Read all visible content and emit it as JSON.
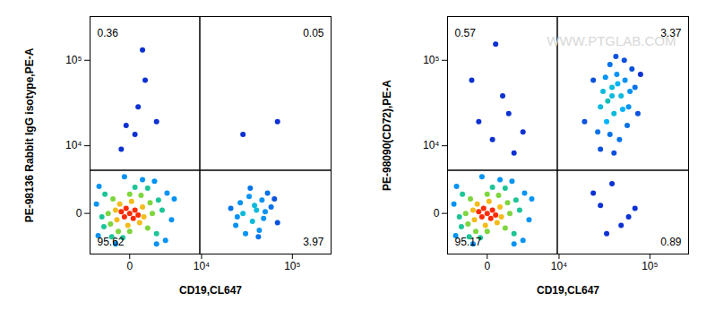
{
  "chart_data": [
    {
      "type": "scatter",
      "x_label": "CD19,CL647",
      "y_label": "PE-98136 Rabbit IgG isotype,PE-A",
      "log": true,
      "xlim": [
        -3500,
        250000
      ],
      "ylim": [
        -4000,
        300000
      ],
      "xticks": [
        0,
        {
          "value": 10000,
          "label": "10⁴"
        },
        {
          "value": 100000,
          "label": "10⁵"
        }
      ],
      "yticks": [
        0,
        {
          "value": 10000,
          "label": "10⁴"
        },
        {
          "value": 100000,
          "label": "10⁵"
        }
      ],
      "gates": {
        "x": 9500,
        "y": 4400
      },
      "quadrant_percents": {
        "upper_left": 0.36,
        "upper_right": 0.05,
        "lower_left": 95.62,
        "lower_right": 3.97
      },
      "x": [
        0,
        300,
        -300,
        200,
        -200,
        500,
        -500,
        800,
        -800,
        600,
        -600,
        900,
        -900,
        100,
        -100,
        1400,
        -1300,
        1200,
        -1100,
        1600,
        -1500,
        0,
        0,
        700,
        -700,
        2200,
        -1900,
        2000,
        -1800,
        2600,
        -2100,
        300,
        -400,
        1200,
        -1200,
        3200,
        -2500,
        3000,
        -2400,
        3800,
        -2700,
        800,
        -900,
        1800,
        2000,
        4200,
        -300,
        30000,
        40000,
        25000,
        50000,
        35000,
        45000,
        28000,
        60000,
        38000,
        32000,
        55000,
        42000,
        22000,
        70000,
        48000,
        36000,
        26000,
        65000,
        44000,
        52000,
        500,
        -200,
        1000,
        300,
        -500,
        2000,
        800,
        30000,
        70000
      ],
      "values": [
        0,
        200,
        -200,
        -300,
        300,
        -100,
        100,
        400,
        -400,
        -600,
        600,
        -200,
        200,
        800,
        -800,
        700,
        -700,
        -1000,
        1000,
        0,
        0,
        1400,
        -1300,
        1300,
        -1300,
        900,
        -900,
        -1500,
        1400,
        200,
        -200,
        2100,
        -1900,
        2000,
        -1800,
        1500,
        -1700,
        -2200,
        2200,
        -400,
        600,
        3000,
        -2600,
        2800,
        -2600,
        1000,
        3400,
        0,
        500,
        -800,
        -300,
        1200,
        -1200,
        700,
        400,
        -500,
        -1500,
        1500,
        200,
        300,
        -600,
        900,
        2000,
        -200,
        1000,
        -1800,
        100,
        30000,
        18000,
        60000,
        14000,
        9000,
        20000,
        130000,
        14000,
        20000
      ],
      "density": [
        1,
        1,
        1,
        1,
        1,
        1,
        1,
        0.8,
        0.8,
        0.8,
        0.8,
        0.8,
        0.8,
        0.8,
        0.8,
        0.6,
        0.6,
        0.6,
        0.6,
        0.6,
        0.6,
        0.6,
        0.6,
        0.6,
        0.6,
        0.4,
        0.4,
        0.4,
        0.4,
        0.4,
        0.4,
        0.4,
        0.4,
        0.4,
        0.4,
        0.2,
        0.2,
        0.2,
        0.2,
        0.2,
        0.2,
        0.2,
        0.2,
        0.2,
        0.2,
        0.2,
        0.2,
        0.3,
        0.3,
        0.2,
        0.2,
        0.2,
        0.2,
        0.2,
        0.15,
        0.3,
        0.2,
        0.15,
        0.3,
        0.15,
        0.1,
        0.2,
        0.15,
        0.2,
        0.1,
        0.15,
        0.2,
        0.05,
        0.05,
        0.05,
        0.05,
        0.05,
        0.05,
        0.05,
        0.05,
        0.05
      ]
    },
    {
      "type": "scatter",
      "x_label": "CD19,CL647",
      "y_label": "PE-98090(CD72),PE-A",
      "annotations": [
        "WWW.PTGLAB.COM"
      ],
      "log": true,
      "xlim": [
        -3500,
        250000
      ],
      "ylim": [
        -4000,
        300000
      ],
      "xticks": [
        0,
        {
          "value": 10000,
          "label": "10⁴"
        },
        {
          "value": 100000,
          "label": "10⁵"
        }
      ],
      "yticks": [
        0,
        {
          "value": 10000,
          "label": "10⁴"
        },
        {
          "value": 100000,
          "label": "10⁵"
        }
      ],
      "gates": {
        "x": 9500,
        "y": 4400
      },
      "quadrant_percents": {
        "upper_left": 0.57,
        "upper_right": 3.37,
        "lower_left": 95.17,
        "lower_right": 0.89
      },
      "x": [
        0,
        300,
        -300,
        200,
        -200,
        500,
        -500,
        800,
        -800,
        600,
        -600,
        900,
        -900,
        100,
        -100,
        1400,
        -1300,
        1200,
        -1100,
        1600,
        -1500,
        0,
        0,
        700,
        -700,
        2200,
        -1900,
        2000,
        -1800,
        2600,
        -2100,
        300,
        -400,
        1200,
        -1200,
        3200,
        -2500,
        3000,
        -2400,
        3800,
        -2700,
        800,
        -900,
        1800,
        2000,
        4200,
        -300,
        30000,
        50000,
        25000,
        60000,
        40000,
        70000,
        35000,
        30000,
        40000,
        35000,
        50000,
        45000,
        28000,
        60000,
        38000,
        55000,
        32000,
        70000,
        42000,
        25000,
        65000,
        48000,
        36000,
        58000,
        44000,
        30000,
        75000,
        52000,
        40000,
        34000,
        62000,
        46000,
        20000,
        80000,
        38000,
        54000,
        42000,
        -500,
        1000,
        300,
        2000,
        -1000,
        500,
        3000,
        1500
      ],
      "values": [
        0,
        200,
        -200,
        -300,
        300,
        -100,
        100,
        400,
        -400,
        -600,
        600,
        -200,
        200,
        800,
        -800,
        700,
        -700,
        -1000,
        1000,
        0,
        0,
        1400,
        -1300,
        1300,
        -1300,
        900,
        -900,
        -1500,
        1400,
        200,
        -200,
        2100,
        -1900,
        2000,
        -1800,
        1500,
        -1700,
        -2200,
        2200,
        -400,
        600,
        3000,
        -2600,
        2800,
        -2600,
        1000,
        3400,
        500,
        -800,
        1500,
        -200,
        2500,
        300,
        -1500,
        30000,
        50000,
        20000,
        40000,
        70000,
        15000,
        30000,
        90000,
        60000,
        45000,
        50000,
        25000,
        60000,
        80000,
        12000,
        35000,
        18000,
        110000,
        9000,
        25000,
        28000,
        40000,
        65000,
        45000,
        55000,
        20000,
        70000,
        14000,
        100000,
        8000,
        20000,
        40000,
        12000,
        8000,
        60000,
        150000,
        15000,
        25000
      ],
      "density": [
        1,
        1,
        1,
        1,
        1,
        1,
        1,
        0.8,
        0.8,
        0.8,
        0.8,
        0.8,
        0.8,
        0.8,
        0.8,
        0.6,
        0.6,
        0.6,
        0.6,
        0.6,
        0.6,
        0.6,
        0.6,
        0.6,
        0.6,
        0.4,
        0.4,
        0.4,
        0.4,
        0.4,
        0.4,
        0.4,
        0.4,
        0.4,
        0.4,
        0.2,
        0.2,
        0.2,
        0.2,
        0.2,
        0.2,
        0.2,
        0.2,
        0.2,
        0.2,
        0.2,
        0.2,
        0.05,
        0.05,
        0.05,
        0.05,
        0.05,
        0.05,
        0.05,
        0.3,
        0.3,
        0.25,
        0.3,
        0.2,
        0.15,
        0.2,
        0.15,
        0.2,
        0.3,
        0.15,
        0.3,
        0.1,
        0.1,
        0.15,
        0.35,
        0.15,
        0.1,
        0.1,
        0.1,
        0.25,
        0.3,
        0.2,
        0.2,
        0.25,
        0.1,
        0.05,
        0.15,
        0.1,
        0.1,
        0.05,
        0.05,
        0.05,
        0.05,
        0.05,
        0.05,
        0.05,
        0.05
      ]
    }
  ]
}
